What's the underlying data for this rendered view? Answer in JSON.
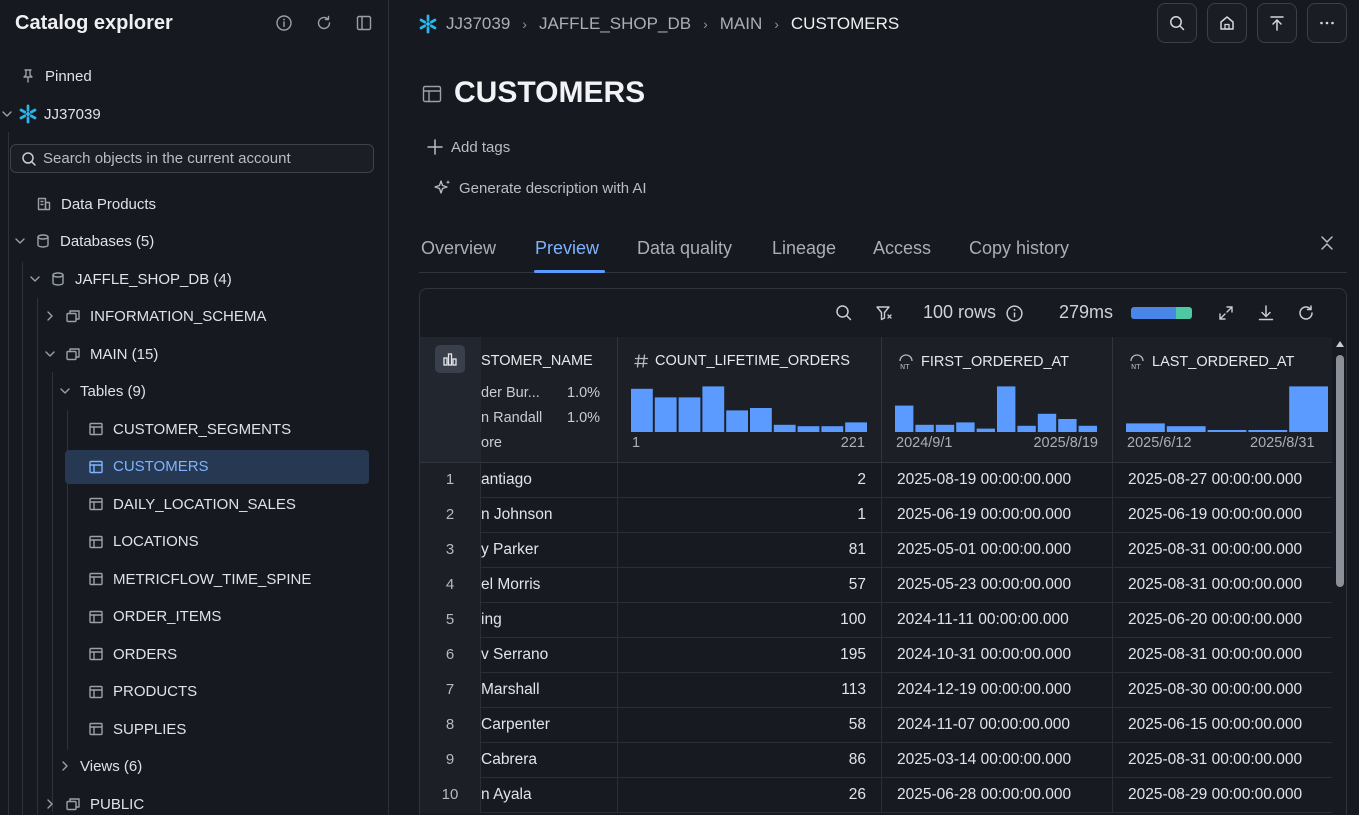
{
  "sidebar": {
    "title": "Catalog explorer",
    "search_placeholder": "Search objects in the current account",
    "pinned": "Pinned",
    "account": "JJ37039",
    "data_products": "Data Products",
    "databases": "Databases (5)",
    "db": "JAFFLE_SHOP_DB (4)",
    "schema_info": "INFORMATION_SCHEMA",
    "schema_main": "MAIN (15)",
    "tables": "Tables (9)",
    "table_items": [
      "CUSTOMER_SEGMENTS",
      "CUSTOMERS",
      "DAILY_LOCATION_SALES",
      "LOCATIONS",
      "METRICFLOW_TIME_SPINE",
      "ORDER_ITEMS",
      "ORDERS",
      "PRODUCTS",
      "SUPPLIES"
    ],
    "views": "Views (6)",
    "schema_public": "PUBLIC"
  },
  "breadcrumb": [
    "JJ37039",
    "JAFFLE_SHOP_DB",
    "MAIN",
    "CUSTOMERS"
  ],
  "page_title": "CUSTOMERS",
  "actions": {
    "add_tags": "Add tags",
    "generate": "Generate description with AI"
  },
  "tabs": [
    "Overview",
    "Preview",
    "Data quality",
    "Lineage",
    "Access",
    "Copy history"
  ],
  "active_tab": "Preview",
  "toolbar": {
    "rows": "100 rows",
    "time": "279ms",
    "timebar_fraction_blue": 0.74,
    "timebar_fraction_green": 0.26
  },
  "columns": [
    {
      "name": "STOMER_NAME",
      "categories": [
        {
          "label": "der Bur...",
          "pct": "1.0%"
        },
        {
          "label": "n Randall",
          "pct": "1.0%"
        },
        {
          "label": "ore",
          "pct": ""
        }
      ]
    },
    {
      "name": "COUNT_LIFETIME_ORDERS",
      "min": "1",
      "max": "221",
      "histogram": [
        0.9,
        0.72,
        0.72,
        0.95,
        0.45,
        0.5,
        0.15,
        0.12,
        0.12,
        0.2
      ]
    },
    {
      "name": "FIRST_ORDERED_AT",
      "min": "2024/9/1",
      "max": "2025/8/19",
      "histogram": [
        0.55,
        0.15,
        0.15,
        0.2,
        0.07,
        0.95,
        0.13,
        0.38,
        0.27,
        0.13
      ]
    },
    {
      "name": "LAST_ORDERED_AT",
      "min": "2025/6/12",
      "max": "2025/8/31",
      "histogram": [
        0.18,
        0.12,
        0.02,
        0.04,
        0.95
      ]
    }
  ],
  "rows": [
    {
      "n": "1",
      "name": "antiago",
      "count": "2",
      "first": "2025-08-19 00:00:00.000",
      "last": "2025-08-27 00:00:00.000"
    },
    {
      "n": "2",
      "name": "n Johnson",
      "count": "1",
      "first": "2025-06-19 00:00:00.000",
      "last": "2025-06-19 00:00:00.000"
    },
    {
      "n": "3",
      "name": "y Parker",
      "count": "81",
      "first": "2025-05-01 00:00:00.000",
      "last": "2025-08-31 00:00:00.000"
    },
    {
      "n": "4",
      "name": "el Morris",
      "count": "57",
      "first": "2025-05-23 00:00:00.000",
      "last": "2025-08-31 00:00:00.000"
    },
    {
      "n": "5",
      "name": "ing",
      "count": "100",
      "first": "2024-11-11 00:00:00.000",
      "last": "2025-06-20 00:00:00.000"
    },
    {
      "n": "6",
      "name": "v Serrano",
      "count": "195",
      "first": "2024-10-31 00:00:00.000",
      "last": "2025-08-31 00:00:00.000"
    },
    {
      "n": "7",
      "name": "Marshall",
      "count": "113",
      "first": "2024-12-19 00:00:00.000",
      "last": "2025-08-30 00:00:00.000"
    },
    {
      "n": "8",
      "name": "Carpenter",
      "count": "58",
      "first": "2024-11-07 00:00:00.000",
      "last": "2025-06-15 00:00:00.000"
    },
    {
      "n": "9",
      "name": "Cabrera",
      "count": "86",
      "first": "2025-03-14 00:00:00.000",
      "last": "2025-08-31 00:00:00.000"
    },
    {
      "n": "10",
      "name": "n Ayala",
      "count": "26",
      "first": "2025-06-28 00:00:00.000",
      "last": "2025-08-29 00:00:00.000"
    }
  ],
  "colors": {
    "accent": "#5b9bff",
    "bar": "#5b9bff",
    "selected_bg": "#273852",
    "snowflake": "#29b5e8"
  }
}
